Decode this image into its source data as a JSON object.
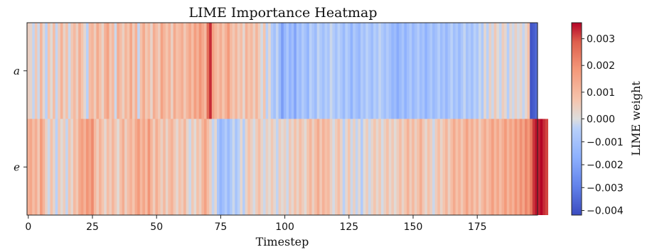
{
  "chart_data": {
    "type": "heatmap",
    "title": "LIME Importance Heatmap",
    "xlabel": "Timestep",
    "ylabel": "",
    "rows": [
      "a",
      "e"
    ],
    "x_range": [
      0,
      199
    ],
    "x_ticks": [
      "0",
      "25",
      "50",
      "75",
      "100",
      "125",
      "150",
      "175"
    ],
    "x_tick_values": [
      0,
      25,
      50,
      75,
      100,
      125,
      150,
      175
    ],
    "colorbar": {
      "label": "LIME weight",
      "range": [
        -0.0042,
        0.0036
      ],
      "ticks": [
        0.003,
        0.002,
        0.001,
        0.0,
        -0.001,
        -0.002,
        -0.003,
        -0.004
      ],
      "tick_labels": [
        "0.003",
        "0.002",
        "0.001",
        "0.000",
        "−0.001",
        "−0.002",
        "−0.003",
        "−0.004"
      ],
      "colormap": "coolwarm"
    },
    "values": [
      [
        0.0004,
        0.0003,
        -0.0003,
        0.0006,
        -0.0002,
        0.0011,
        0.0002,
        -0.0004,
        0.0007,
        0.0001,
        0.0009,
        -0.0003,
        0.0005,
        0.0012,
        0.0003,
        0.0008,
        -0.0002,
        0.0006,
        0.001,
        0.0004,
        0.0013,
        0.0007,
        0.0002,
        -0.0004,
        0.0009,
        0.0011,
        0.0005,
        0.0014,
        0.0008,
        0.0003,
        0.0012,
        0.0016,
        0.0006,
        0.001,
        -0.0002,
        0.0013,
        0.0009,
        0.0004,
        0.0011,
        0.0007,
        0.0015,
        0.0005,
        0.0012,
        -0.0003,
        0.0008,
        0.0014,
        0.0006,
        0.001,
        0.0003,
        0.0013,
        0.0009,
        0.0005,
        0.0016,
        0.0011,
        0.0007,
        0.0012,
        0.0004,
        0.0014,
        0.0008,
        0.001,
        0.0013,
        0.0006,
        0.0011,
        0.0015,
        0.0009,
        0.0017,
        0.0012,
        0.0019,
        0.0014,
        0.001,
        0.0026,
        0.0033,
        0.0016,
        0.0011,
        0.0008,
        0.0013,
        0.0007,
        0.0012,
        0.0018,
        0.001,
        0.0006,
        0.0011,
        0.0005,
        0.0009,
        0.0002,
        0.0012,
        0.0007,
        0.001,
        0.0004,
        0.0011,
        0.0005,
        -0.0001,
        0.0007,
        -0.0004,
        0.0002,
        -0.0006,
        -0.001,
        -0.0003,
        -0.0012,
        -0.0022,
        -0.0014,
        -0.0008,
        -0.0016,
        -0.0011,
        -0.002,
        -0.0009,
        -0.0013,
        -0.0006,
        -0.001,
        -0.0015,
        -0.0004,
        -0.0008,
        -0.0012,
        -0.0003,
        -0.0007,
        -0.0011,
        -0.0005,
        -0.0009,
        -0.0002,
        -0.0006,
        -0.001,
        -0.0004,
        -0.0008,
        -0.0013,
        -0.0005,
        -0.0009,
        -0.0016,
        -0.0007,
        -0.0011,
        -0.0014,
        -0.0006,
        -0.001,
        -0.0004,
        -0.0008,
        -0.0012,
        -0.0005,
        -0.0009,
        -0.0003,
        -0.0007,
        -0.0011,
        -0.0006,
        -0.001,
        -0.0015,
        -0.0012,
        -0.0018,
        -0.0013,
        -0.0009,
        -0.0016,
        -0.0011,
        -0.0007,
        -0.0014,
        -0.001,
        -0.0006,
        -0.0012,
        -0.0009,
        -0.0016,
        -0.0011,
        -0.0007,
        -0.0013,
        -0.001,
        -0.0005,
        -0.0012,
        -0.0008,
        -0.0014,
        -0.0009,
        -0.0004,
        -0.0011,
        -0.0007,
        -0.0013,
        -0.0008,
        -0.0003,
        -0.001,
        -0.0006,
        -0.0011,
        -0.0004,
        -0.0008,
        -0.0002,
        -0.0007,
        0.0002,
        -0.0004,
        0.0004,
        -0.0002,
        0.0006,
        0.0001,
        -0.0003,
        0.0005,
        0.0002,
        -0.0005,
        0.0003,
        -0.0002,
        0.0004,
        -0.0001,
        0.0003,
        -0.0003,
        0.0002,
        0.0008,
        -0.004,
        -0.0038,
        -0.0035
      ],
      [
        0.0012,
        0.0015,
        0.0009,
        0.0013,
        0.0006,
        0.0018,
        0.0011,
        0.0004,
        -0.0002,
        0.0008,
        0.0003,
        -0.0004,
        0.0006,
        0.0001,
        0.0005,
        -0.0003,
        0.0007,
        0.0002,
        0.001,
        0.0006,
        0.0014,
        0.0017,
        0.0012,
        0.0019,
        0.0015,
        0.0021,
        0.001,
        0.0005,
        0.0012,
        0.0007,
        0.0002,
        0.0009,
        0.0005,
        0.0011,
        0.0006,
        0.0001,
        0.0008,
        0.0013,
        0.0004,
        0.0009,
        0.0012,
        0.0007,
        0.0014,
        0.0018,
        0.001,
        0.0015,
        0.0009,
        0.0019,
        0.0011,
        0.0005,
        0.0013,
        0.0008,
        0.0004,
        0.001,
        0.0003,
        0.0009,
        0.0012,
        0.0006,
        0.0002,
        0.0008,
        0.0005,
        0.0011,
        0.0003,
        -0.0002,
        0.0006,
        0.0001,
        0.0008,
        0.0004,
        0.0011,
        0.0016,
        0.0009,
        0.0004,
        -0.0003,
        0.0002,
        -0.0008,
        -0.0015,
        -0.0011,
        -0.0006,
        -0.0013,
        -0.0007,
        -0.0002,
        -0.0009,
        -0.0004,
        0.0002,
        -0.0005,
        0.0003,
        0.0008,
        0.0004,
        -0.0001,
        0.0005,
        0.0009,
        0.0003,
        -0.0002,
        0.0004,
        0.0001,
        0.0006,
        0.0002,
        -0.0003,
        0.0005,
        0.0001,
        0.0004,
        -0.0002,
        0.0006,
        0.0002,
        0.0008,
        0.0003,
        0.0009,
        0.0005,
        0.0001,
        0.0007,
        0.0011,
        0.0004,
        0.0009,
        0.0014,
        0.0006,
        0.0012,
        0.0008,
        0.001,
        0.0004,
        -0.0001,
        0.0005,
        0.0009,
        0.0003,
        -0.0004,
        0.0002,
        0.0007,
        -0.0002,
        0.0004,
        -0.0003,
        0.0002,
        -0.0006,
        0.0001,
        0.0005,
        -0.0002,
        0.0003,
        0.0007,
        0.0002,
        0.0006,
        -0.0001,
        0.0004,
        0.0008,
        0.0002,
        0.0006,
        0.0001,
        0.0005,
        0.0009,
        0.0003,
        0.0007,
        0.0012,
        0.0005,
        0.001,
        0.0004,
        0.0008,
        0.0013,
        0.0006,
        0.0002,
        0.0008,
        0.0004,
        -0.0002,
        0.0005,
        0.0009,
        0.0003,
        0.0007,
        0.0011,
        0.0004,
        0.0009,
        0.0014,
        0.0008,
        0.0012,
        0.0006,
        0.0011,
        0.0016,
        0.0009,
        0.0013,
        0.0007,
        0.0012,
        0.0005,
        0.001,
        0.0014,
        0.0008,
        0.0012,
        0.0017,
        0.001,
        0.0015,
        0.0009,
        0.0013,
        0.0018,
        0.0011,
        0.0016,
        0.0012,
        0.0019,
        0.0014,
        0.002,
        0.0015,
        0.0022,
        0.0018,
        0.0024,
        0.0032,
        0.0035,
        0.0034,
        0.0036,
        0.0033,
        0.0031
      ]
    ]
  }
}
